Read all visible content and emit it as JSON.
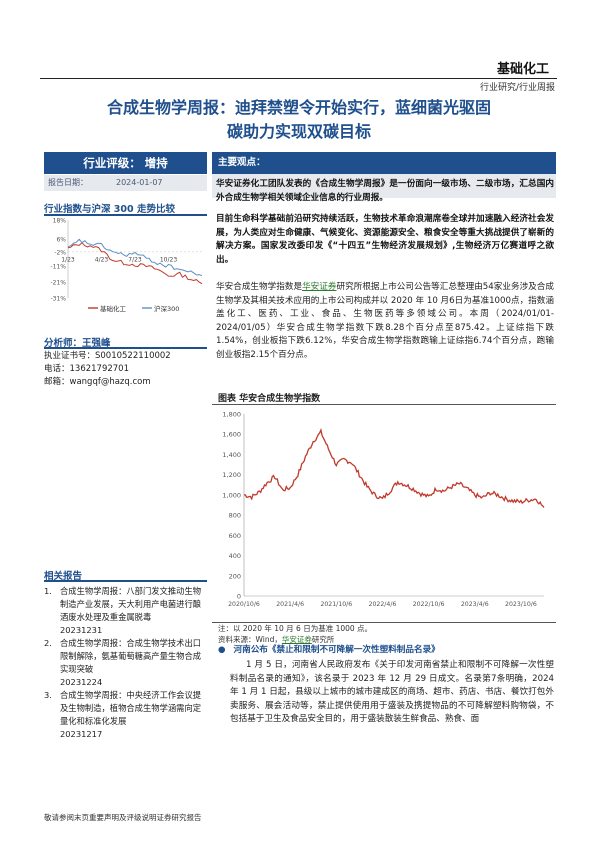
{
  "header": {
    "brand": "基础化工",
    "crumb": "行业研究/行业周报"
  },
  "title": {
    "line1": "合成生物学周报：迪拜禁塑令开始实行，蓝细菌光驱固",
    "line2": "碳助力实现双碳目标"
  },
  "left": {
    "rating": "行业评级： 增持",
    "date_label": "报告日期：",
    "date_value": "2024-01-07",
    "index_chart_title": "行业指数与沪深 300 走势比较",
    "index_chart": {
      "y_ticks": [
        "18%",
        "6%",
        "-2%",
        "-11%",
        "-21%",
        "-31%"
      ],
      "x_ticks": [
        "1/23",
        "4/23",
        "7/23",
        "10/23"
      ],
      "legend": [
        "基础化工",
        "沪深300"
      ],
      "colors": {
        "industry": "#c0392b",
        "hs300": "#5a8fc6"
      }
    },
    "analyst_label": "分析师：王强峰",
    "analyst_cert": "执业证书号：S0010522110002",
    "analyst_phone": "电话：13621792701",
    "analyst_email": "邮箱：wangqf@hazq.com",
    "reports_title": "相关报告",
    "reports": [
      {
        "num": "1.",
        "text": "合成生物学周报：八部门发文推动生物制造产业发展，天大利用产电菌进行酿酒废水处理及重金属脱毒",
        "date": "20231231"
      },
      {
        "num": "2.",
        "text": "合成生物学周报：合成生物学技术出口限制解除，氨基葡萄糖高产量生物合成实现突破",
        "date": "20231224"
      },
      {
        "num": "3.",
        "text": "合成生物学周报：中央经济工作会议提及生物制造，植物合成生物学涵需向定量化和标准化发展",
        "date": "20231217"
      }
    ]
  },
  "right": {
    "viewpoint_label": "主要观点：",
    "p1": "华安证券化工团队发表的《合成生物学周报》是一份面向一级市场、二级市场，汇总国内外合成生物学相关领域企业信息的行业周报。",
    "p2": "目前生命科学基础前沿研究持续活跃，生物技术革命浪潮席卷全球并加速融入经济社会发展，为人类应对生命健康、气候变化、资源能源安全、粮食安全等重大挑战提供了崭新的解决方案。国家发改委印发《“十四五”生物经济发展规划》,生物经济万亿赛道呼之欲出。",
    "p3_a": "华安合成生物学指数是",
    "p3_link": "华安证券",
    "p3_b": "研究所根据上市公司公告等汇总整理由54家业务涉及合成生物学及其相关技术应用的上市公司构成并以 2020 年 10 月6日为基准1000点，指数涵盖化工、医药、工业、食品、生物医药等多领域公司。本周（2024/01/01-2024/01/05）华安合成生物学指数下跌8.28个百分点至875.42。上证综指下跌1.54%，创业板指下跌6.12%，华安合成生物学指数跑输上证综指6.74个百分点，跑输创业板指2.15个百分点。",
    "chart_caption": "图表 华安合成生物学指数",
    "chart_note": "注：以 2020 年 10 月 6 日为基准 1000 点。",
    "chart_source_a": "资料来源：Wind，",
    "chart_source_link": "华安证券",
    "chart_source_b": "研究所",
    "news_title": "河南公布《禁止和限制不可降解一次性塑料制品名录》",
    "news_body": "1 月 5 日，河南省人民政府发布《关于印发河南省禁止和限制不可降解一次性塑料制品名录的通知》，该名录于 2023 年 12 月 29 日成文。名录第7条明确，2024 年 1 月 1 日起，县级以上城市的城市建成区的商场、超市、药店、书店、餐饮打包外卖服务、展会活动等，禁止提供使用用于盛装及携提物品的不可降解塑料购物袋，不包括基于卫生及食品安全目的，用于盛装散装生鲜食品、熟食、面"
  },
  "footer": "敬请参阅末页重要声明及评级说明证券研究报告",
  "chart_data": [
    {
      "type": "line",
      "title": "华安合成生物学指数",
      "x": [
        "2020/10/6",
        "2020/11/6",
        "2020/12/6",
        "2021/1/6",
        "2021/2/6",
        "2021/3/6",
        "2021/4/6",
        "2021/5/6",
        "2021/6/6",
        "2021/7/6",
        "2021/8/6",
        "2021/9/6",
        "2021/10/6",
        "2021/11/6",
        "2021/12/6",
        "2022/1/6",
        "2022/2/6",
        "2022/3/6",
        "2022/4/6",
        "2022/5/6",
        "2022/6/6",
        "2022/7/6",
        "2022/8/6",
        "2022/9/6",
        "2022/10/6",
        "2022/11/6",
        "2022/12/6",
        "2023/1/6",
        "2023/2/6",
        "2023/3/6",
        "2023/4/6",
        "2023/5/6",
        "2023/6/6",
        "2023/7/6",
        "2023/8/6",
        "2023/9/6",
        "2023/10/6",
        "2023/11/6",
        "2023/12/6",
        "2024/1/5"
      ],
      "series": [
        {
          "values": [
            1000,
            980,
            1030,
            1120,
            1180,
            1050,
            1070,
            1200,
            1380,
            1530,
            1620,
            1450,
            1300,
            1350,
            1320,
            1200,
            1080,
            1000,
            960,
            1040,
            1130,
            1100,
            1060,
            1010,
            980,
            1060,
            1040,
            1080,
            1110,
            1060,
            1000,
            970,
            1020,
            1000,
            960,
            940,
            930,
            950,
            960,
            875
          ]
        }
      ],
      "x_ticks": [
        "2020/10/6",
        "2021/4/6",
        "2021/10/6",
        "2022/4/6",
        "2022/10/6",
        "2023/4/6",
        "2023/10/6"
      ],
      "ylim": [
        0,
        1800
      ],
      "y_ticks": [
        0,
        200,
        400,
        600,
        800,
        1000,
        1200,
        1400,
        1600,
        1800
      ],
      "color": "#c0392b"
    },
    {
      "type": "line",
      "title": "行业指数与沪深 300 走势比较",
      "x": [
        "1/23",
        "2/23",
        "3/23",
        "4/23",
        "5/23",
        "6/23",
        "7/23",
        "8/23",
        "9/23",
        "10/23",
        "11/23",
        "12/23",
        "1/24"
      ],
      "series": [
        {
          "name": "基础化工",
          "values": [
            0,
            3,
            2,
            -1,
            -7,
            -9,
            -10,
            -11,
            -13,
            -17,
            -16,
            -19,
            -22
          ]
        },
        {
          "name": "沪深300",
          "values": [
            0,
            5,
            3,
            2,
            -2,
            -4,
            -3,
            -6,
            -9,
            -11,
            -13,
            -15,
            -17
          ]
        }
      ],
      "y_tick_labels": [
        "18%",
        "6%",
        "-2%",
        "-11%",
        "-21%",
        "-31%"
      ],
      "ylim": [
        -31,
        18
      ],
      "legend": "bottom"
    }
  ]
}
